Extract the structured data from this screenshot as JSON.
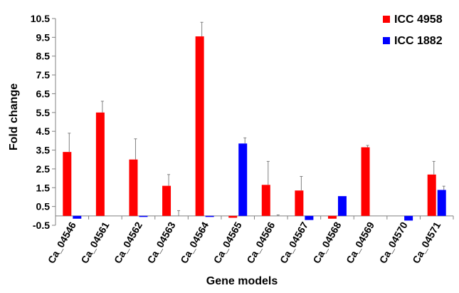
{
  "chart_data": {
    "type": "bar",
    "title": "",
    "xlabel": "Gene models",
    "ylabel": "Fold change",
    "ylim": [
      -0.5,
      10.5
    ],
    "yticks": [
      -0.5,
      0.5,
      1.5,
      2.5,
      3.5,
      4.5,
      5.5,
      6.5,
      7.5,
      8.5,
      9.5,
      10.5
    ],
    "ytick_labels": [
      "-0.5",
      "0.5",
      "1.5",
      "2.5",
      "3.5",
      "4.5",
      "5.5",
      "6.5",
      "7.5",
      "8.5",
      "9.5",
      "10.5"
    ],
    "categories": [
      "Ca_04546",
      "Ca_04561",
      "Ca_04562",
      "Ca_04563",
      "Ca_04564",
      "Ca_04565",
      "Ca_04566",
      "Ca_04567",
      "Ca_04568",
      "Ca_04569",
      "Ca_04570",
      "Ca_04571"
    ],
    "series": [
      {
        "name": "ICC 4958",
        "color": "#ff0000",
        "values": [
          3.4,
          5.5,
          3.0,
          1.6,
          9.55,
          -0.1,
          1.65,
          1.35,
          -0.15,
          3.65,
          0.0,
          2.2
        ],
        "error": [
          1.0,
          0.6,
          1.1,
          0.6,
          0.75,
          0.0,
          1.25,
          0.75,
          0.0,
          0.1,
          0.0,
          0.7
        ]
      },
      {
        "name": "ICC 1882",
        "color": "#0000ff",
        "values": [
          -0.15,
          0.0,
          -0.02,
          0.0,
          -0.05,
          3.85,
          0.0,
          -0.22,
          1.05,
          0.0,
          -0.25,
          1.38
        ],
        "error": [
          0.0,
          0.0,
          0.0,
          0.28,
          0.0,
          0.3,
          0.05,
          0.0,
          0.0,
          0.0,
          0.0,
          0.2
        ]
      }
    ],
    "legend": "top-right",
    "grid": false
  }
}
